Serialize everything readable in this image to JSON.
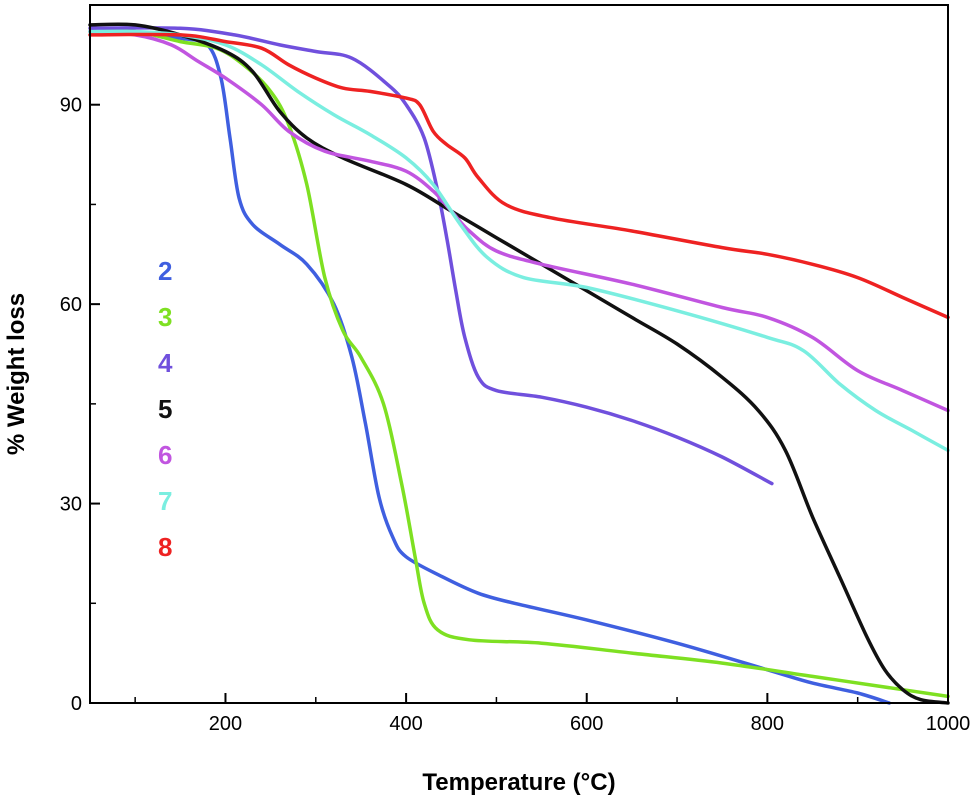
{
  "chart_data": {
    "type": "line",
    "xlabel": "Temperature (°C)",
    "ylabel": "% Weight loss",
    "xlim": [
      50,
      1000
    ],
    "ylim": [
      0,
      105
    ],
    "xticks": [
      200,
      400,
      600,
      800,
      1000
    ],
    "yticks": [
      0,
      30,
      60,
      90
    ],
    "grid": false,
    "legend_position": "left-middle",
    "series": [
      {
        "name": "2",
        "color": "#3f5fe0",
        "points": [
          [
            50,
            101
          ],
          [
            100,
            101
          ],
          [
            150,
            100
          ],
          [
            180,
            99
          ],
          [
            195,
            94
          ],
          [
            205,
            85
          ],
          [
            215,
            76
          ],
          [
            230,
            72
          ],
          [
            260,
            69
          ],
          [
            290,
            66
          ],
          [
            320,
            60
          ],
          [
            340,
            52
          ],
          [
            355,
            42
          ],
          [
            370,
            31
          ],
          [
            385,
            25
          ],
          [
            400,
            22
          ],
          [
            440,
            19
          ],
          [
            480,
            16.5
          ],
          [
            520,
            15
          ],
          [
            600,
            12.5
          ],
          [
            700,
            9
          ],
          [
            800,
            5
          ],
          [
            850,
            3
          ],
          [
            900,
            1.5
          ],
          [
            935,
            0
          ]
        ]
      },
      {
        "name": "3",
        "color": "#7ee022",
        "points": [
          [
            50,
            101
          ],
          [
            100,
            101
          ],
          [
            150,
            99.5
          ],
          [
            190,
            98.5
          ],
          [
            220,
            96
          ],
          [
            250,
            92
          ],
          [
            270,
            87
          ],
          [
            290,
            78
          ],
          [
            310,
            64
          ],
          [
            330,
            56
          ],
          [
            350,
            52
          ],
          [
            375,
            45
          ],
          [
            395,
            33
          ],
          [
            410,
            22
          ],
          [
            420,
            15
          ],
          [
            435,
            11
          ],
          [
            470,
            9.5
          ],
          [
            550,
            9
          ],
          [
            650,
            7.5
          ],
          [
            750,
            6
          ],
          [
            850,
            4
          ],
          [
            950,
            2
          ],
          [
            1000,
            1
          ]
        ]
      },
      {
        "name": "4",
        "color": "#7050dd",
        "points": [
          [
            50,
            101.5
          ],
          [
            150,
            101.5
          ],
          [
            210,
            100.5
          ],
          [
            260,
            99
          ],
          [
            300,
            98
          ],
          [
            340,
            97
          ],
          [
            380,
            93
          ],
          [
            400,
            90
          ],
          [
            420,
            85
          ],
          [
            435,
            77
          ],
          [
            445,
            70
          ],
          [
            455,
            62
          ],
          [
            465,
            55
          ],
          [
            480,
            49
          ],
          [
            500,
            47
          ],
          [
            550,
            46
          ],
          [
            600,
            44.5
          ],
          [
            650,
            42.5
          ],
          [
            700,
            40
          ],
          [
            750,
            37
          ],
          [
            805,
            33
          ]
        ]
      },
      {
        "name": "5",
        "color": "#111111",
        "points": [
          [
            50,
            102
          ],
          [
            100,
            102
          ],
          [
            150,
            100.5
          ],
          [
            200,
            98
          ],
          [
            230,
            95
          ],
          [
            260,
            89
          ],
          [
            290,
            85
          ],
          [
            330,
            82
          ],
          [
            400,
            78
          ],
          [
            450,
            74
          ],
          [
            500,
            70
          ],
          [
            550,
            66
          ],
          [
            600,
            62
          ],
          [
            650,
            58
          ],
          [
            700,
            54
          ],
          [
            750,
            49
          ],
          [
            790,
            44
          ],
          [
            820,
            38
          ],
          [
            850,
            28
          ],
          [
            880,
            19
          ],
          [
            910,
            10
          ],
          [
            930,
            5
          ],
          [
            950,
            2
          ],
          [
            970,
            0.5
          ],
          [
            1000,
            0
          ]
        ]
      },
      {
        "name": "6",
        "color": "#c155e0",
        "points": [
          [
            50,
            101
          ],
          [
            100,
            100.5
          ],
          [
            140,
            99
          ],
          [
            170,
            96.5
          ],
          [
            200,
            94
          ],
          [
            240,
            90
          ],
          [
            270,
            86
          ],
          [
            310,
            83
          ],
          [
            360,
            81.5
          ],
          [
            400,
            80
          ],
          [
            430,
            77
          ],
          [
            450,
            74
          ],
          [
            470,
            71
          ],
          [
            500,
            68
          ],
          [
            550,
            66
          ],
          [
            650,
            63
          ],
          [
            750,
            59.5
          ],
          [
            800,
            58
          ],
          [
            850,
            55
          ],
          [
            900,
            50
          ],
          [
            950,
            47
          ],
          [
            1000,
            44
          ]
        ]
      },
      {
        "name": "7",
        "color": "#7aeee0",
        "points": [
          [
            50,
            101
          ],
          [
            100,
            101
          ],
          [
            150,
            100.5
          ],
          [
            200,
            99
          ],
          [
            240,
            96
          ],
          [
            280,
            92
          ],
          [
            320,
            88.5
          ],
          [
            360,
            85.5
          ],
          [
            400,
            82
          ],
          [
            430,
            78
          ],
          [
            460,
            72
          ],
          [
            490,
            67
          ],
          [
            530,
            64
          ],
          [
            600,
            62.5
          ],
          [
            700,
            59
          ],
          [
            800,
            55
          ],
          [
            840,
            53
          ],
          [
            880,
            48
          ],
          [
            920,
            44
          ],
          [
            960,
            41
          ],
          [
            1000,
            38
          ]
        ]
      },
      {
        "name": "8",
        "color": "#ee2222",
        "points": [
          [
            50,
            100.5
          ],
          [
            150,
            100.5
          ],
          [
            200,
            99.5
          ],
          [
            240,
            98.5
          ],
          [
            270,
            96
          ],
          [
            300,
            94
          ],
          [
            330,
            92.5
          ],
          [
            360,
            92
          ],
          [
            400,
            91
          ],
          [
            415,
            90
          ],
          [
            430,
            86
          ],
          [
            445,
            84
          ],
          [
            465,
            82
          ],
          [
            480,
            79
          ],
          [
            510,
            75
          ],
          [
            560,
            73
          ],
          [
            650,
            71
          ],
          [
            750,
            68.5
          ],
          [
            800,
            67.5
          ],
          [
            850,
            66
          ],
          [
            900,
            64
          ],
          [
            950,
            61
          ],
          [
            1000,
            58
          ]
        ]
      }
    ]
  }
}
